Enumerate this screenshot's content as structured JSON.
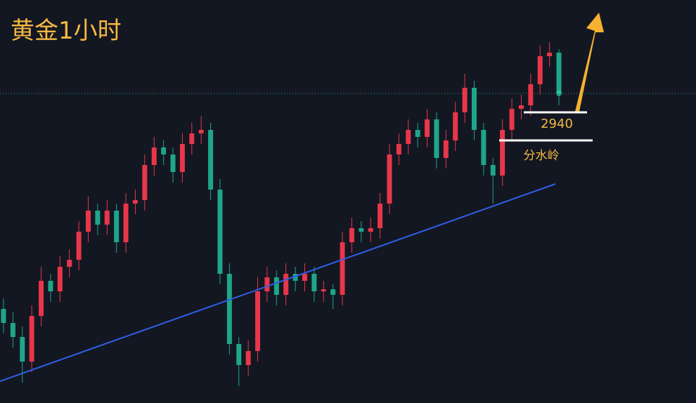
{
  "chart_data": {
    "type": "candlestick",
    "title": "黄金1小时",
    "up_color": "#e8364a",
    "down_color": "#1ea58a",
    "ylim": [
      2857.2,
      2972
    ],
    "open": [
      2884,
      2880,
      2876,
      2869,
      2882,
      2892,
      2889,
      2896,
      2898,
      2906,
      2912,
      2908,
      2912,
      2903,
      2914,
      2915,
      2925,
      2930,
      2928,
      2923,
      2931,
      2934,
      2935,
      2918,
      2894,
      2874,
      2868,
      2872,
      2889,
      2893,
      2888,
      2894,
      2892,
      2894,
      2889,
      2889.6,
      2888,
      2903,
      2907,
      2906,
      2907,
      2914,
      2928,
      2931,
      2935,
      2933,
      2938,
      2927,
      2932,
      2940,
      2947,
      2935,
      2925,
      2922,
      2935,
      2941,
      2942,
      2948,
      2956,
      2957
    ],
    "high": [
      2887,
      2883,
      2879,
      2885,
      2896,
      2894,
      2899,
      2901,
      2909,
      2916,
      2914,
      2915,
      2914,
      2917,
      2918,
      2928,
      2933,
      2932,
      2930,
      2934,
      2937,
      2939,
      2937,
      2921,
      2897,
      2876,
      2875,
      2893,
      2896,
      2895,
      2897,
      2896,
      2897,
      2896,
      2892,
      2891,
      2906,
      2910,
      2909,
      2910,
      2917,
      2931,
      2934,
      2938,
      2937,
      2941,
      2940,
      2935,
      2943,
      2951,
      2949,
      2937,
      2927,
      2938,
      2944,
      2945,
      2951,
      2959,
      2960,
      2958
    ],
    "low": [
      2877,
      2873,
      2863,
      2866,
      2879,
      2886,
      2886,
      2893,
      2895,
      2903,
      2905,
      2905,
      2900,
      2900,
      2911,
      2912,
      2922,
      2925,
      2920,
      2920,
      2928,
      2931,
      2915,
      2891,
      2871,
      2862,
      2865,
      2869,
      2886,
      2885,
      2885,
      2889,
      2889,
      2886,
      2886,
      2884,
      2885,
      2900,
      2903,
      2903,
      2904,
      2911,
      2925,
      2928,
      2930,
      2930,
      2924,
      2924,
      2929,
      2937,
      2932,
      2922,
      2914,
      2919,
      2932,
      2938,
      2939,
      2945,
      2953,
      2942
    ],
    "close": [
      2880,
      2876,
      2869,
      2882,
      2892,
      2889,
      2896,
      2898,
      2906,
      2912,
      2908,
      2912,
      2903,
      2914,
      2915,
      2925,
      2930,
      2928,
      2923,
      2931,
      2934,
      2935,
      2918,
      2894,
      2874,
      2868,
      2872,
      2889,
      2893,
      2888,
      2894,
      2892,
      2894,
      2889,
      2889.6,
      2888,
      2903,
      2907,
      2906,
      2907,
      2914,
      2928,
      2931,
      2935,
      2933,
      2938,
      2927,
      2932,
      2940,
      2947,
      2935,
      2925,
      2922,
      2935,
      2941,
      2942,
      2948,
      2956,
      2957,
      2945.4
    ],
    "trendline": {
      "start": 2863.4,
      "end": 2919.6,
      "color": "#2f5fe8"
    },
    "levels": [
      {
        "value": 2940
      },
      {
        "value": 2932,
        "label": "分水岭"
      }
    ]
  }
}
